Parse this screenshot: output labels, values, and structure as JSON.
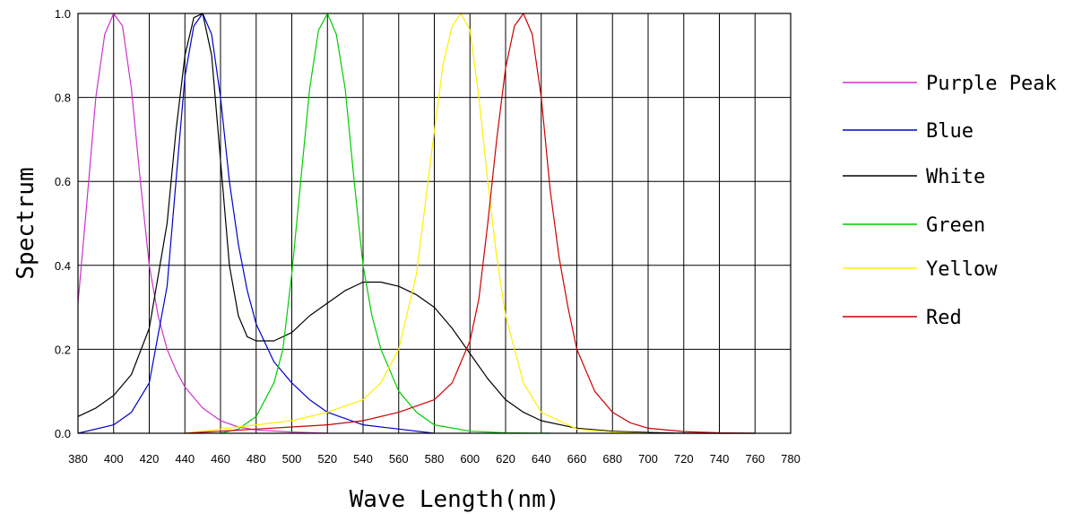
{
  "chart_data": {
    "type": "line",
    "title": "",
    "xlabel": "Wave Length(nm)",
    "ylabel": "Spectrum",
    "xlim": [
      380,
      780
    ],
    "ylim": [
      0,
      1.0
    ],
    "x_ticks": [
      "380",
      "400",
      "420",
      "440",
      "460",
      "480",
      "500",
      "520",
      "540",
      "560",
      "580",
      "600",
      "620",
      "640",
      "660",
      "680",
      "700",
      "720",
      "740",
      "760",
      "780"
    ],
    "y_ticks": [
      "0.0",
      "0.2",
      "0.4",
      "0.6",
      "0.8",
      "1.0"
    ],
    "grid": true,
    "legend_position": "right",
    "series": [
      {
        "name": "Purple Peak",
        "color": "#cc33cc",
        "points": [
          [
            380,
            0.31
          ],
          [
            385,
            0.55
          ],
          [
            390,
            0.8
          ],
          [
            395,
            0.95
          ],
          [
            400,
            1.0
          ],
          [
            405,
            0.97
          ],
          [
            410,
            0.82
          ],
          [
            415,
            0.6
          ],
          [
            420,
            0.4
          ],
          [
            425,
            0.28
          ],
          [
            430,
            0.2
          ],
          [
            435,
            0.15
          ],
          [
            440,
            0.11
          ],
          [
            450,
            0.06
          ],
          [
            460,
            0.03
          ],
          [
            470,
            0.015
          ],
          [
            480,
            0.008
          ],
          [
            500,
            0.003
          ],
          [
            520,
            0.0
          ]
        ]
      },
      {
        "name": "Blue",
        "color": "#0000cc",
        "points": [
          [
            380,
            0.0
          ],
          [
            400,
            0.02
          ],
          [
            410,
            0.05
          ],
          [
            420,
            0.12
          ],
          [
            430,
            0.35
          ],
          [
            435,
            0.6
          ],
          [
            440,
            0.85
          ],
          [
            445,
            0.97
          ],
          [
            450,
            1.0
          ],
          [
            455,
            0.95
          ],
          [
            460,
            0.8
          ],
          [
            465,
            0.6
          ],
          [
            470,
            0.45
          ],
          [
            475,
            0.34
          ],
          [
            480,
            0.26
          ],
          [
            490,
            0.17
          ],
          [
            500,
            0.12
          ],
          [
            510,
            0.08
          ],
          [
            520,
            0.05
          ],
          [
            540,
            0.02
          ],
          [
            560,
            0.01
          ],
          [
            580,
            0.0
          ]
        ]
      },
      {
        "name": "White",
        "color": "#000000",
        "points": [
          [
            380,
            0.04
          ],
          [
            390,
            0.06
          ],
          [
            400,
            0.09
          ],
          [
            410,
            0.14
          ],
          [
            420,
            0.25
          ],
          [
            430,
            0.5
          ],
          [
            435,
            0.72
          ],
          [
            440,
            0.9
          ],
          [
            445,
            0.99
          ],
          [
            450,
            1.0
          ],
          [
            455,
            0.9
          ],
          [
            460,
            0.65
          ],
          [
            465,
            0.4
          ],
          [
            470,
            0.28
          ],
          [
            475,
            0.23
          ],
          [
            480,
            0.22
          ],
          [
            490,
            0.22
          ],
          [
            500,
            0.24
          ],
          [
            510,
            0.28
          ],
          [
            520,
            0.31
          ],
          [
            530,
            0.34
          ],
          [
            540,
            0.36
          ],
          [
            550,
            0.36
          ],
          [
            560,
            0.35
          ],
          [
            570,
            0.33
          ],
          [
            580,
            0.3
          ],
          [
            590,
            0.25
          ],
          [
            600,
            0.19
          ],
          [
            610,
            0.13
          ],
          [
            620,
            0.08
          ],
          [
            630,
            0.05
          ],
          [
            640,
            0.03
          ],
          [
            660,
            0.012
          ],
          [
            680,
            0.005
          ],
          [
            700,
            0.002
          ],
          [
            720,
            0.0
          ],
          [
            740,
            0.0
          ],
          [
            760,
            0.0
          ]
        ]
      },
      {
        "name": "Green",
        "color": "#00cc00",
        "points": [
          [
            460,
            0.0
          ],
          [
            470,
            0.01
          ],
          [
            480,
            0.04
          ],
          [
            490,
            0.12
          ],
          [
            495,
            0.2
          ],
          [
            500,
            0.38
          ],
          [
            505,
            0.6
          ],
          [
            510,
            0.82
          ],
          [
            515,
            0.96
          ],
          [
            520,
            1.0
          ],
          [
            525,
            0.95
          ],
          [
            530,
            0.82
          ],
          [
            535,
            0.6
          ],
          [
            540,
            0.4
          ],
          [
            545,
            0.28
          ],
          [
            550,
            0.2
          ],
          [
            560,
            0.1
          ],
          [
            570,
            0.05
          ],
          [
            580,
            0.02
          ],
          [
            600,
            0.005
          ],
          [
            620,
            0.001
          ],
          [
            645,
            0.0
          ]
        ]
      },
      {
        "name": "Yellow",
        "color": "#ffee00",
        "points": [
          [
            440,
            0.0
          ],
          [
            460,
            0.01
          ],
          [
            480,
            0.02
          ],
          [
            500,
            0.03
          ],
          [
            520,
            0.05
          ],
          [
            540,
            0.08
          ],
          [
            550,
            0.12
          ],
          [
            560,
            0.2
          ],
          [
            570,
            0.38
          ],
          [
            575,
            0.55
          ],
          [
            580,
            0.72
          ],
          [
            585,
            0.88
          ],
          [
            590,
            0.97
          ],
          [
            595,
            1.0
          ],
          [
            600,
            0.96
          ],
          [
            605,
            0.8
          ],
          [
            610,
            0.6
          ],
          [
            615,
            0.42
          ],
          [
            620,
            0.28
          ],
          [
            630,
            0.12
          ],
          [
            640,
            0.05
          ],
          [
            660,
            0.01
          ],
          [
            680,
            0.003
          ],
          [
            700,
            0.0
          ]
        ]
      },
      {
        "name": "Red",
        "color": "#cc0000",
        "points": [
          [
            440,
            0.0
          ],
          [
            460,
            0.005
          ],
          [
            480,
            0.01
          ],
          [
            500,
            0.015
          ],
          [
            520,
            0.02
          ],
          [
            540,
            0.03
          ],
          [
            560,
            0.05
          ],
          [
            580,
            0.08
          ],
          [
            590,
            0.12
          ],
          [
            600,
            0.22
          ],
          [
            605,
            0.32
          ],
          [
            610,
            0.5
          ],
          [
            615,
            0.7
          ],
          [
            620,
            0.87
          ],
          [
            625,
            0.97
          ],
          [
            630,
            1.0
          ],
          [
            635,
            0.95
          ],
          [
            640,
            0.8
          ],
          [
            645,
            0.58
          ],
          [
            650,
            0.42
          ],
          [
            655,
            0.3
          ],
          [
            660,
            0.2
          ],
          [
            670,
            0.1
          ],
          [
            680,
            0.05
          ],
          [
            690,
            0.025
          ],
          [
            700,
            0.012
          ],
          [
            720,
            0.004
          ],
          [
            740,
            0.001
          ],
          [
            760,
            0.0
          ]
        ]
      }
    ]
  }
}
